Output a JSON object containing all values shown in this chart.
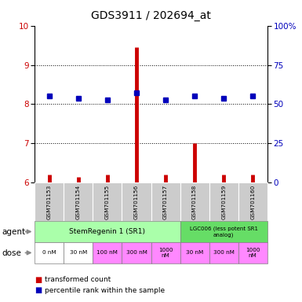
{
  "title": "GDS3911 / 202694_at",
  "samples": [
    "GSM701153",
    "GSM701154",
    "GSM701155",
    "GSM701156",
    "GSM701157",
    "GSM701158",
    "GSM701159",
    "GSM701160"
  ],
  "red_values": [
    6.2,
    6.15,
    6.2,
    9.45,
    6.2,
    7.0,
    6.2,
    6.2
  ],
  "blue_values": [
    8.2,
    8.15,
    8.1,
    8.3,
    8.1,
    8.2,
    8.15,
    8.2
  ],
  "ylim": [
    6,
    10
  ],
  "yticks_left": [
    6,
    7,
    8,
    9,
    10
  ],
  "yticks_right": [
    0,
    25,
    50,
    75,
    100
  ],
  "dose_labels": [
    "0 nM",
    "30 nM",
    "100 nM",
    "300 nM",
    "1000\nnM",
    "30 nM",
    "300 nM",
    "1000\nnM"
  ],
  "dose_bg_colors": [
    "#FFFFFF",
    "#FFFFFF",
    "#FF88FF",
    "#FF88FF",
    "#FF88FF",
    "#FF88FF",
    "#FF88FF",
    "#FF88FF"
  ],
  "red_color": "#CC0000",
  "blue_color": "#0000BB",
  "agent1_color": "#AAFFAA",
  "agent2_color": "#66DD66",
  "grid_color": "#000000",
  "sample_bg": "#CCCCCC",
  "title_fontsize": 10,
  "tick_fontsize": 7.5,
  "label_fontsize": 7
}
